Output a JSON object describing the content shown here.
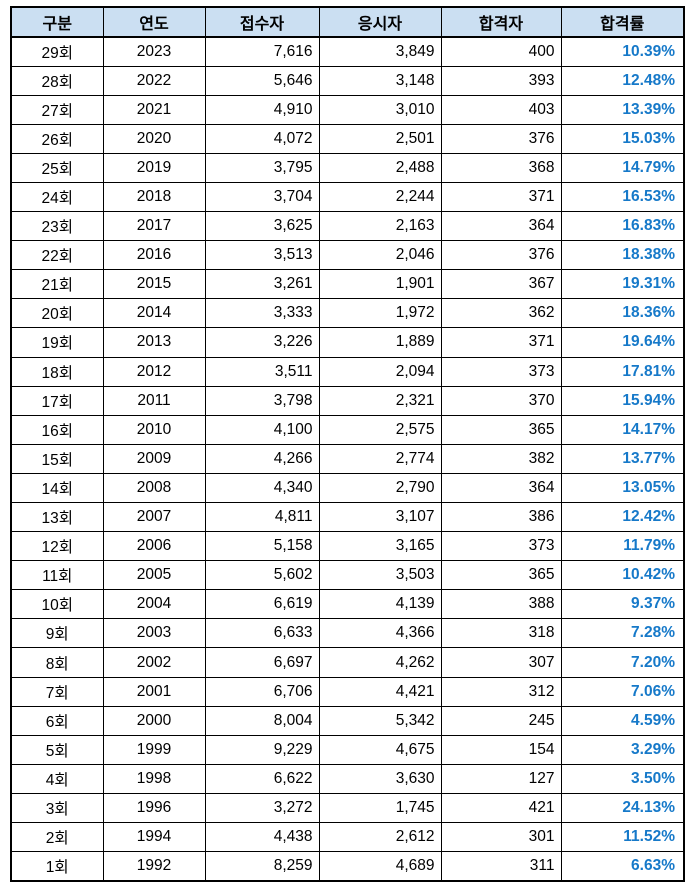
{
  "colors": {
    "header_bg": "#CBDFF2",
    "rate_text": "#1679C9",
    "border": "#000000"
  },
  "table": {
    "columns": [
      "구분",
      "연도",
      "접수자",
      "응시자",
      "합격자",
      "합격률"
    ],
    "fields": [
      "round",
      "year",
      "registered",
      "taken",
      "passed",
      "rate"
    ],
    "rows": [
      {
        "round": "29회",
        "year": "2023",
        "registered": "7,616",
        "taken": "3,849",
        "passed": "400",
        "rate": "10.39%"
      },
      {
        "round": "28회",
        "year": "2022",
        "registered": "5,646",
        "taken": "3,148",
        "passed": "393",
        "rate": "12.48%"
      },
      {
        "round": "27회",
        "year": "2021",
        "registered": "4,910",
        "taken": "3,010",
        "passed": "403",
        "rate": "13.39%"
      },
      {
        "round": "26회",
        "year": "2020",
        "registered": "4,072",
        "taken": "2,501",
        "passed": "376",
        "rate": "15.03%"
      },
      {
        "round": "25회",
        "year": "2019",
        "registered": "3,795",
        "taken": "2,488",
        "passed": "368",
        "rate": "14.79%"
      },
      {
        "round": "24회",
        "year": "2018",
        "registered": "3,704",
        "taken": "2,244",
        "passed": "371",
        "rate": "16.53%"
      },
      {
        "round": "23회",
        "year": "2017",
        "registered": "3,625",
        "taken": "2,163",
        "passed": "364",
        "rate": "16.83%"
      },
      {
        "round": "22회",
        "year": "2016",
        "registered": "3,513",
        "taken": "2,046",
        "passed": "376",
        "rate": "18.38%"
      },
      {
        "round": "21회",
        "year": "2015",
        "registered": "3,261",
        "taken": "1,901",
        "passed": "367",
        "rate": "19.31%"
      },
      {
        "round": "20회",
        "year": "2014",
        "registered": "3,333",
        "taken": "1,972",
        "passed": "362",
        "rate": "18.36%"
      },
      {
        "round": "19회",
        "year": "2013",
        "registered": "3,226",
        "taken": "1,889",
        "passed": "371",
        "rate": "19.64%"
      },
      {
        "round": "18회",
        "year": "2012",
        "registered": "3,511",
        "taken": "2,094",
        "passed": "373",
        "rate": "17.81%"
      },
      {
        "round": "17회",
        "year": "2011",
        "registered": "3,798",
        "taken": "2,321",
        "passed": "370",
        "rate": "15.94%"
      },
      {
        "round": "16회",
        "year": "2010",
        "registered": "4,100",
        "taken": "2,575",
        "passed": "365",
        "rate": "14.17%"
      },
      {
        "round": "15회",
        "year": "2009",
        "registered": "4,266",
        "taken": "2,774",
        "passed": "382",
        "rate": "13.77%"
      },
      {
        "round": "14회",
        "year": "2008",
        "registered": "4,340",
        "taken": "2,790",
        "passed": "364",
        "rate": "13.05%"
      },
      {
        "round": "13회",
        "year": "2007",
        "registered": "4,811",
        "taken": "3,107",
        "passed": "386",
        "rate": "12.42%"
      },
      {
        "round": "12회",
        "year": "2006",
        "registered": "5,158",
        "taken": "3,165",
        "passed": "373",
        "rate": "11.79%"
      },
      {
        "round": "11회",
        "year": "2005",
        "registered": "5,602",
        "taken": "3,503",
        "passed": "365",
        "rate": "10.42%"
      },
      {
        "round": "10회",
        "year": "2004",
        "registered": "6,619",
        "taken": "4,139",
        "passed": "388",
        "rate": "9.37%"
      },
      {
        "round": "9회",
        "year": "2003",
        "registered": "6,633",
        "taken": "4,366",
        "passed": "318",
        "rate": "7.28%"
      },
      {
        "round": "8회",
        "year": "2002",
        "registered": "6,697",
        "taken": "4,262",
        "passed": "307",
        "rate": "7.20%"
      },
      {
        "round": "7회",
        "year": "2001",
        "registered": "6,706",
        "taken": "4,421",
        "passed": "312",
        "rate": "7.06%"
      },
      {
        "round": "6회",
        "year": "2000",
        "registered": "8,004",
        "taken": "5,342",
        "passed": "245",
        "rate": "4.59%"
      },
      {
        "round": "5회",
        "year": "1999",
        "registered": "9,229",
        "taken": "4,675",
        "passed": "154",
        "rate": "3.29%"
      },
      {
        "round": "4회",
        "year": "1998",
        "registered": "6,622",
        "taken": "3,630",
        "passed": "127",
        "rate": "3.50%"
      },
      {
        "round": "3회",
        "year": "1996",
        "registered": "3,272",
        "taken": "1,745",
        "passed": "421",
        "rate": "24.13%"
      },
      {
        "round": "2회",
        "year": "1994",
        "registered": "4,438",
        "taken": "2,612",
        "passed": "301",
        "rate": "11.52%"
      },
      {
        "round": "1회",
        "year": "1992",
        "registered": "8,259",
        "taken": "4,689",
        "passed": "311",
        "rate": "6.63%"
      }
    ]
  }
}
